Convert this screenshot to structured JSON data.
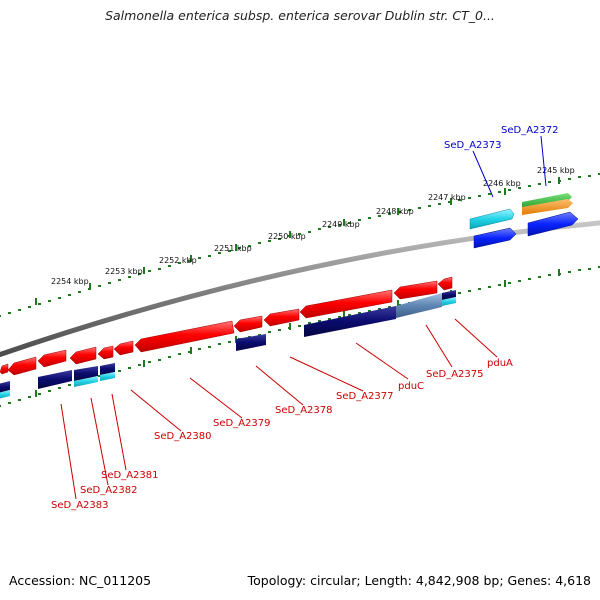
{
  "title": "Salmonella enterica subsp. enterica serovar Dublin str. CT_0...",
  "footer": {
    "accession": "Accession: NC_011205",
    "topology": "Topology: circular; Length: 4,842,908 bp; Genes: 4,618"
  },
  "scale_labels": [
    "2245 kbp",
    "2246 kbp",
    "2247 kbp",
    "2248 kbp",
    "2249 kbp",
    "2250 kbp",
    "2251 kbp",
    "2252 kbp",
    "2253 kbp",
    "2254 kbp"
  ],
  "gene_labels": [
    {
      "text": "SeD_A2372",
      "color": "#0000cc"
    },
    {
      "text": "SeD_A2373",
      "color": "#0000cc"
    },
    {
      "text": "pduA",
      "color": "#cc0000"
    },
    {
      "text": "SeD_A2375",
      "color": "#cc0000"
    },
    {
      "text": "pduC",
      "color": "#cc0000"
    },
    {
      "text": "SeD_A2377",
      "color": "#cc0000"
    },
    {
      "text": "SeD_A2378",
      "color": "#cc0000"
    },
    {
      "text": "SeD_A2379",
      "color": "#cc0000"
    },
    {
      "text": "SeD_A2380",
      "color": "#cc0000"
    },
    {
      "text": "SeD_A2381",
      "color": "#cc0000"
    },
    {
      "text": "SeD_A2382",
      "color": "#cc0000"
    },
    {
      "text": "SeD_A2383",
      "color": "#cc0000"
    }
  ],
  "colors": {
    "backbone": "#808080",
    "forward_cds": "#ff0000",
    "navy_track": "#0b0b6e",
    "cyan_track": "#22d3e6",
    "blue_track": "#0a24ff",
    "green_track": "#33bb33",
    "orange_track": "#f09020",
    "tick": "#1f7a1f"
  }
}
